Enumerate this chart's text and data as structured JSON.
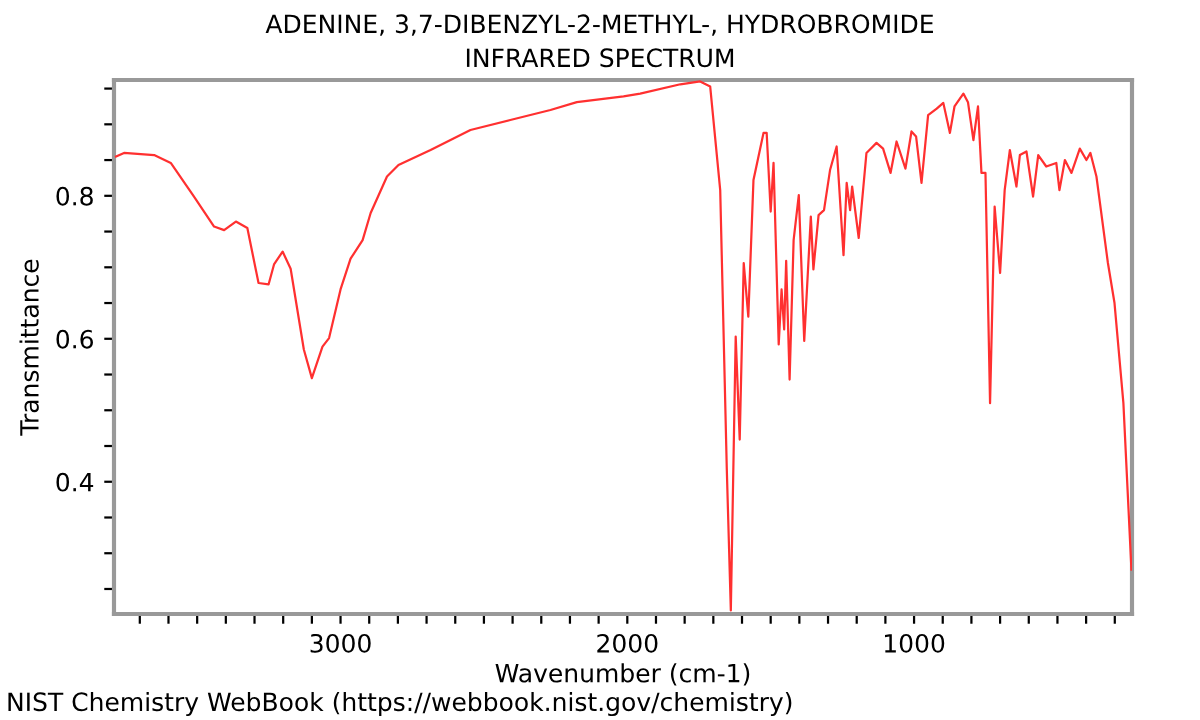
{
  "chart_data": {
    "type": "line",
    "title": "ADENINE, 3,7-DIBENZYL-2-METHYL-, HYDROBROMIDE",
    "subtitle": "INFRARED SPECTRUM",
    "xlabel": "Wavenumber (cm-1)",
    "ylabel": "Transmittance",
    "annotations": [
      "NIST Chemistry WebBook (https://webbook.nist.gov/chemistry)"
    ],
    "xlim": [
      3790,
      240
    ],
    "ylim": [
      0.215,
      0.962
    ],
    "xticks": [
      {
        "value": 3700,
        "label": null
      },
      {
        "value": 3600,
        "label": null
      },
      {
        "value": 3500,
        "label": null
      },
      {
        "value": 3400,
        "label": null
      },
      {
        "value": 3300,
        "label": null
      },
      {
        "value": 3200,
        "label": null
      },
      {
        "value": 3100,
        "label": null
      },
      3000,
      {
        "value": 2900,
        "label": null
      },
      {
        "value": 2800,
        "label": null
      },
      {
        "value": 2700,
        "label": null
      },
      {
        "value": 2600,
        "label": null
      },
      {
        "value": 2500,
        "label": null
      },
      {
        "value": 2400,
        "label": null
      },
      {
        "value": 2300,
        "label": null
      },
      {
        "value": 2200,
        "label": null
      },
      {
        "value": 2100,
        "label": null
      },
      2000,
      {
        "value": 1900,
        "label": null
      },
      {
        "value": 1800,
        "label": null
      },
      {
        "value": 1700,
        "label": null
      },
      {
        "value": 1600,
        "label": null
      },
      {
        "value": 1500,
        "label": null
      },
      {
        "value": 1400,
        "label": null
      },
      {
        "value": 1300,
        "label": null
      },
      {
        "value": 1200,
        "label": null
      },
      {
        "value": 1100,
        "label": null
      },
      1000,
      {
        "value": 900,
        "label": null
      },
      {
        "value": 800,
        "label": null
      },
      {
        "value": 700,
        "label": null
      },
      {
        "value": 600,
        "label": null
      },
      {
        "value": 500,
        "label": null
      },
      {
        "value": 400,
        "label": null
      },
      {
        "value": 300,
        "label": null
      }
    ],
    "yticks": [
      {
        "value": 0.25,
        "label": null
      },
      {
        "value": 0.3,
        "label": null
      },
      {
        "value": 0.35,
        "label": null
      },
      0.4,
      {
        "value": 0.45,
        "label": null
      },
      {
        "value": 0.5,
        "label": null
      },
      {
        "value": 0.55,
        "label": null
      },
      0.6,
      {
        "value": 0.65,
        "label": null
      },
      {
        "value": 0.7,
        "label": null
      },
      {
        "value": 0.75,
        "label": null
      },
      0.8,
      {
        "value": 0.85,
        "label": null
      },
      {
        "value": 0.9,
        "label": null
      },
      {
        "value": 0.95,
        "label": null
      }
    ],
    "grid": false,
    "legend": false,
    "marker": "none",
    "line_style": "solid",
    "series": [
      {
        "color": "#ff3030",
        "x": [
          3783,
          3755,
          3650,
          3592,
          3511,
          3441,
          3406,
          3365,
          3325,
          3286,
          3251,
          3232,
          3202,
          3174,
          3128,
          3100,
          3063,
          3040,
          3000,
          2965,
          2923,
          2895,
          2838,
          2798,
          2686,
          2547,
          2408,
          2268,
          2176,
          2013,
          1955,
          1815,
          1746,
          1711,
          1676,
          1653,
          1639,
          1622,
          1608,
          1594,
          1578,
          1560,
          1525,
          1514,
          1500,
          1490,
          1472,
          1462,
          1453,
          1446,
          1434,
          1420,
          1402,
          1383,
          1360,
          1351,
          1333,
          1314,
          1293,
          1270,
          1246,
          1235,
          1223,
          1216,
          1193,
          1166,
          1131,
          1108,
          1082,
          1061,
          1030,
          1009,
          993,
          974,
          951,
          921,
          898,
          875,
          859,
          828,
          812,
          793,
          777,
          765,
          751,
          735,
          719,
          700,
          684,
          666,
          643,
          631,
          608,
          585,
          567,
          539,
          504,
          493,
          474,
          451,
          422,
          399,
          385,
          364,
          324,
          301,
          270,
          242
        ],
        "values": [
          0.855,
          0.86,
          0.857,
          0.846,
          0.799,
          0.757,
          0.752,
          0.764,
          0.755,
          0.678,
          0.676,
          0.704,
          0.722,
          0.698,
          0.585,
          0.545,
          0.589,
          0.601,
          0.669,
          0.712,
          0.738,
          0.776,
          0.827,
          0.843,
          0.864,
          0.892,
          0.906,
          0.92,
          0.931,
          0.939,
          0.943,
          0.956,
          0.96,
          0.953,
          0.808,
          0.417,
          0.22,
          0.603,
          0.459,
          0.706,
          0.631,
          0.822,
          0.888,
          0.888,
          0.778,
          0.846,
          0.592,
          0.669,
          0.613,
          0.709,
          0.543,
          0.738,
          0.801,
          0.597,
          0.771,
          0.697,
          0.773,
          0.78,
          0.836,
          0.869,
          0.717,
          0.818,
          0.78,
          0.813,
          0.741,
          0.86,
          0.874,
          0.866,
          0.832,
          0.876,
          0.838,
          0.89,
          0.883,
          0.818,
          0.913,
          0.922,
          0.93,
          0.888,
          0.925,
          0.943,
          0.931,
          0.878,
          0.925,
          0.832,
          0.832,
          0.51,
          0.785,
          0.692,
          0.808,
          0.864,
          0.813,
          0.857,
          0.862,
          0.799,
          0.857,
          0.841,
          0.846,
          0.808,
          0.85,
          0.832,
          0.866,
          0.85,
          0.86,
          0.827,
          0.706,
          0.65,
          0.51,
          0.277
        ]
      }
    ]
  }
}
